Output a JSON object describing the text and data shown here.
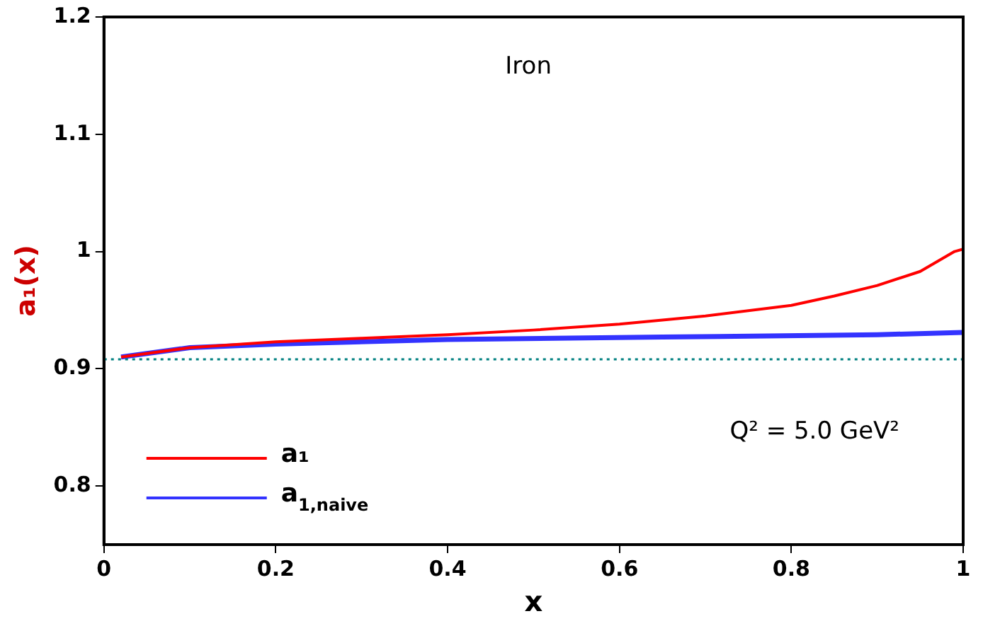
{
  "chart_data": {
    "type": "line",
    "xlabel": "x",
    "ylabel": "a₁(x)",
    "annotations": [
      "Iron",
      "Q² = 5.0 GeV²"
    ],
    "xlim": [
      0,
      1
    ],
    "xticks": [
      0,
      0.2,
      0.4,
      0.6,
      0.8,
      1
    ],
    "ylim": [
      0.75,
      1.2
    ],
    "yticks": [
      0.8,
      0.9,
      1,
      1.1,
      1.2
    ],
    "grid": false,
    "legend": "bottom left",
    "marker": "none",
    "line_style": "solid",
    "ref_lines": [
      {
        "axis": "y",
        "value": 0.908,
        "color": "#008080",
        "line_style": "dotted"
      }
    ],
    "series": [
      {
        "name": "a₁",
        "color": "#ff0000",
        "x": [
          0.02,
          0.1,
          0.2,
          0.3,
          0.4,
          0.5,
          0.6,
          0.7,
          0.8,
          0.85,
          0.9,
          0.95,
          0.99,
          1.0
        ],
        "values": [
          0.91,
          0.918,
          0.923,
          0.926,
          0.929,
          0.933,
          0.938,
          0.945,
          0.954,
          0.962,
          0.971,
          0.983,
          1.0,
          1.002
        ]
      },
      {
        "name": "a$_{1,naive}$",
        "color": "#3333ff",
        "x": [
          0.02,
          0.1,
          0.2,
          0.4,
          0.65,
          0.9,
          1.0
        ],
        "values": [
          0.91,
          0.918,
          0.921,
          0.925,
          0.927,
          0.929,
          0.931
        ]
      }
    ]
  }
}
